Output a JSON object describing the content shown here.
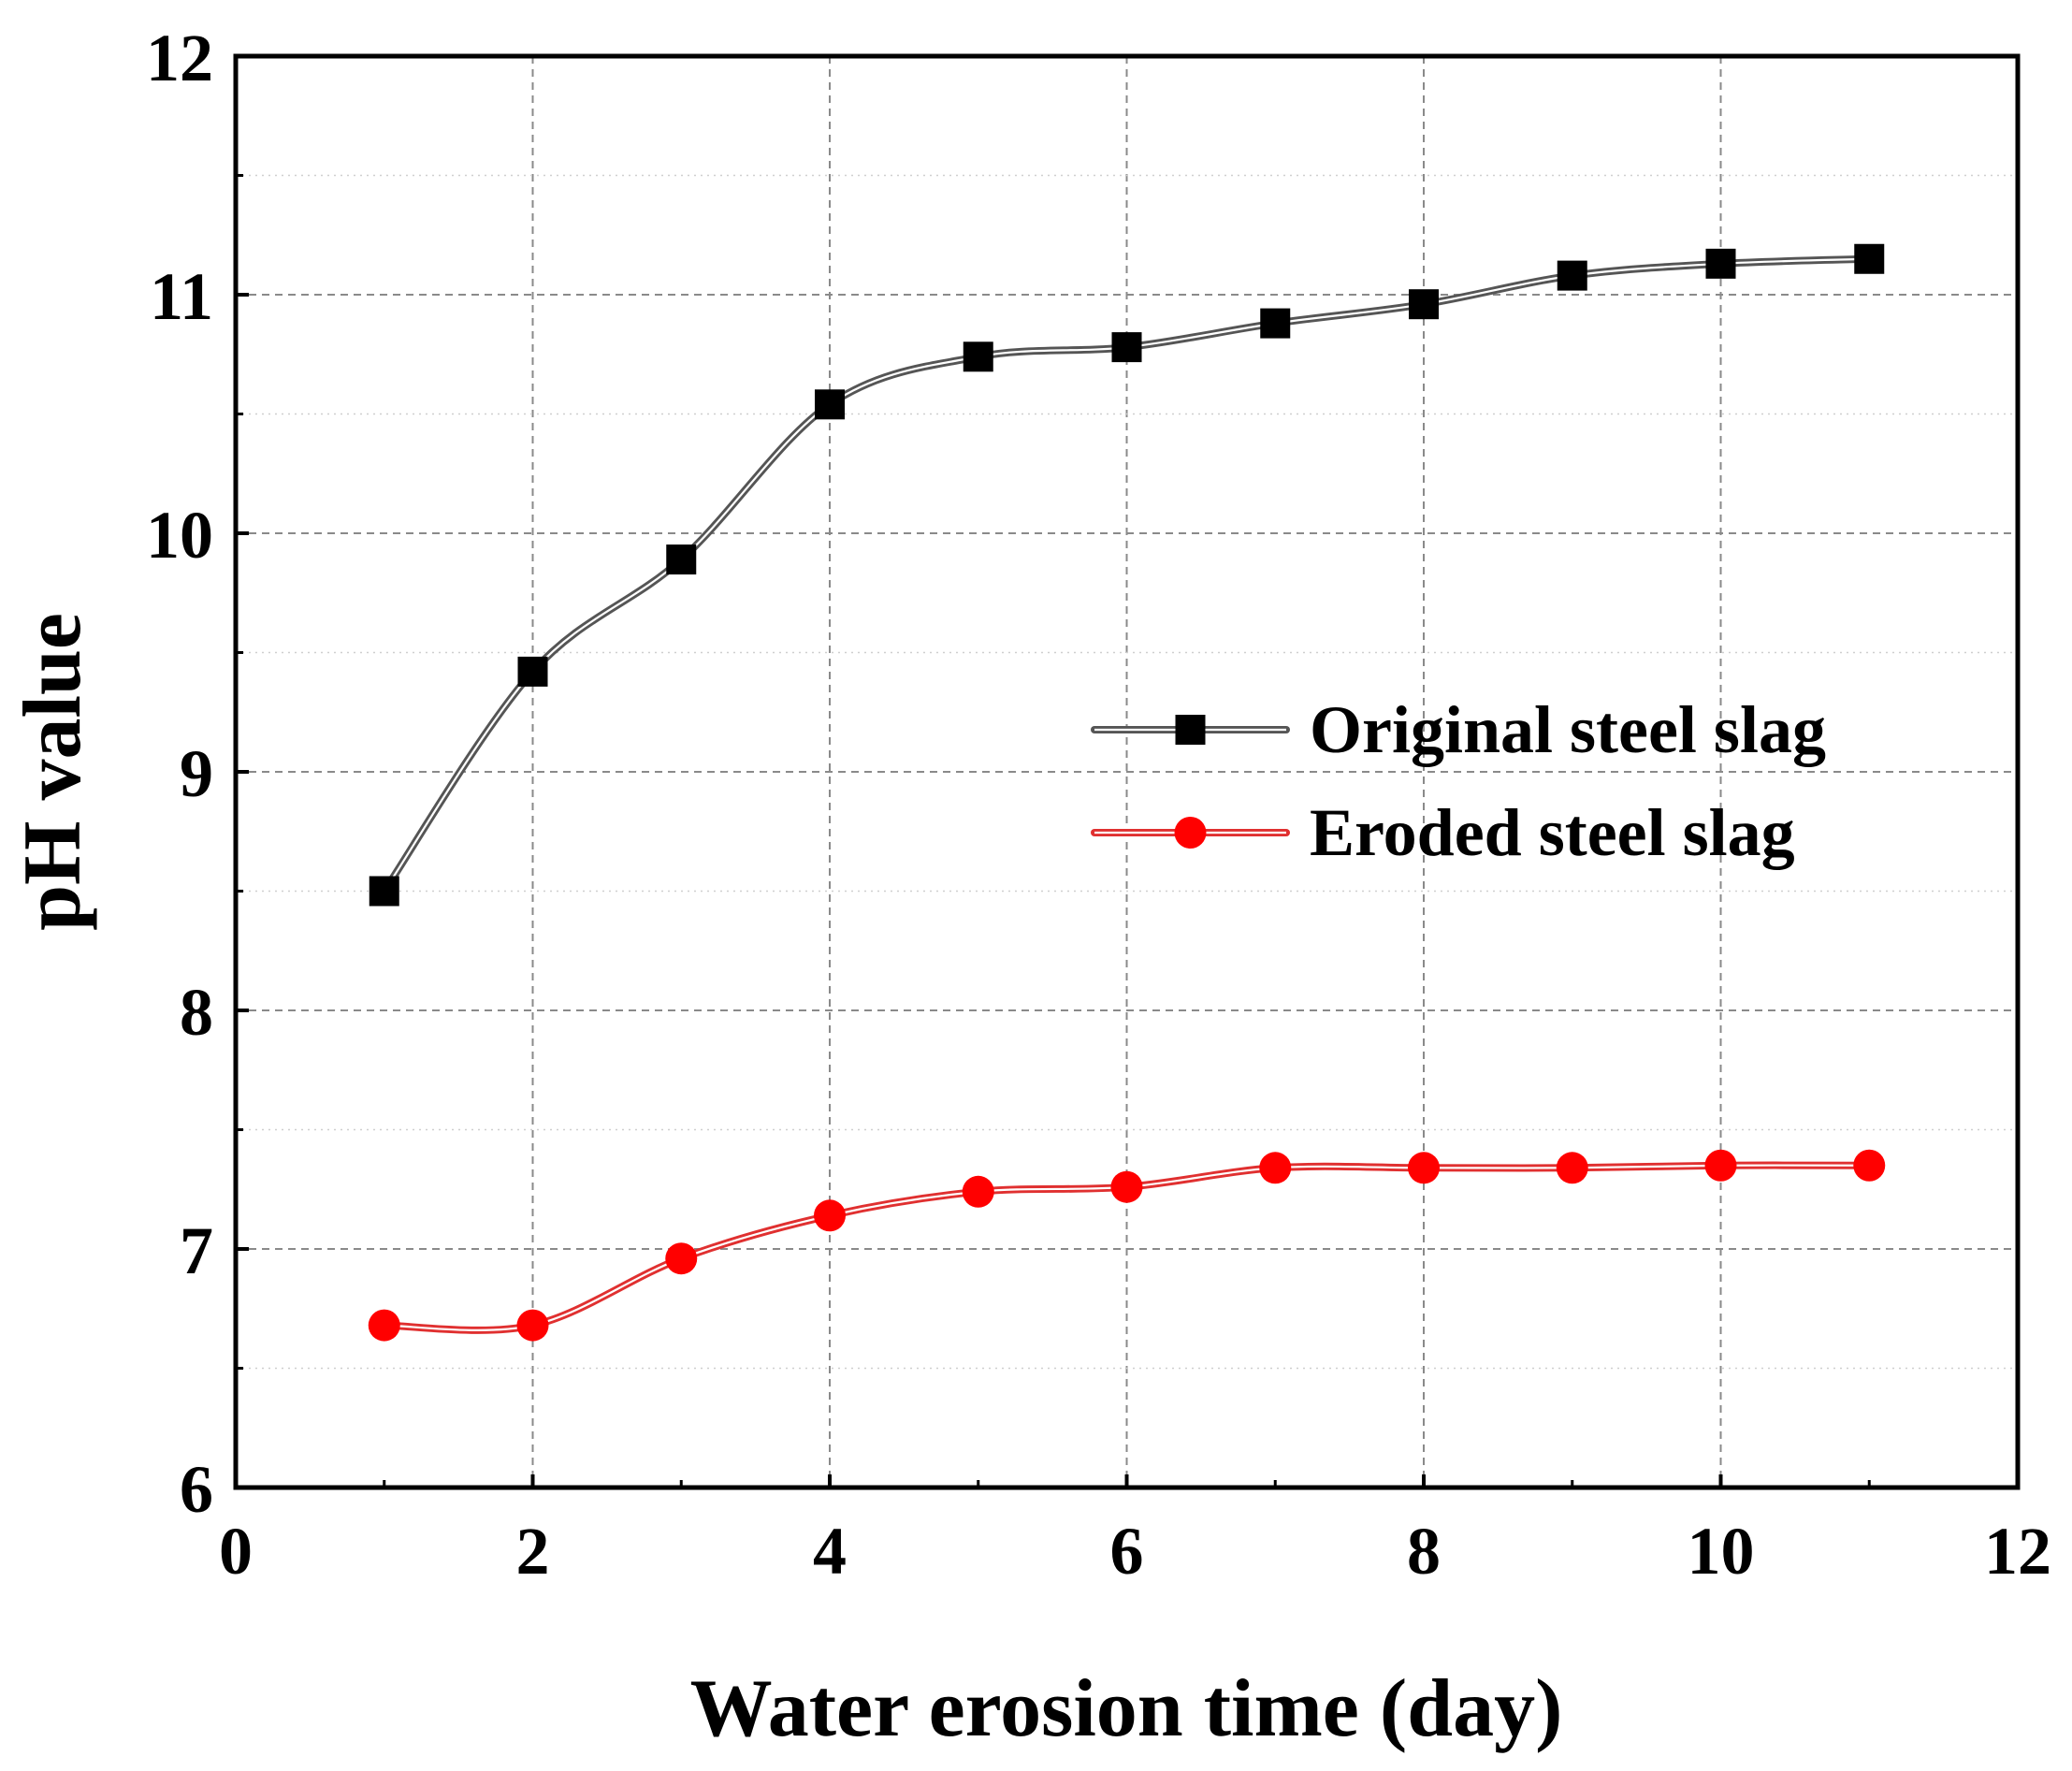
{
  "chart_data": {
    "type": "line",
    "title": "",
    "xlabel": "Water erosion time (day)",
    "ylabel": "pH value",
    "xlim": [
      0,
      12
    ],
    "ylim": [
      6,
      12
    ],
    "xticks": [
      0,
      2,
      4,
      6,
      8,
      10,
      12
    ],
    "yticks": [
      6,
      7,
      8,
      9,
      10,
      11,
      12
    ],
    "grid": true,
    "legend_position": "center-right",
    "x": [
      1,
      2,
      3,
      4,
      5,
      6,
      7,
      8,
      9,
      10,
      11
    ],
    "series": [
      {
        "name": "Original steel slag",
        "marker": "square",
        "color": "#000000",
        "line_color": "#555555",
        "values": [
          8.5,
          9.42,
          9.89,
          10.54,
          10.74,
          10.78,
          10.88,
          10.96,
          11.08,
          11.13,
          11.15
        ]
      },
      {
        "name": "Eroded steel slag",
        "marker": "circle",
        "color": "#ff0000",
        "line_color": "#e03030",
        "values": [
          6.68,
          6.68,
          6.96,
          7.14,
          7.24,
          7.26,
          7.34,
          7.34,
          7.34,
          7.35,
          7.35
        ]
      }
    ]
  }
}
